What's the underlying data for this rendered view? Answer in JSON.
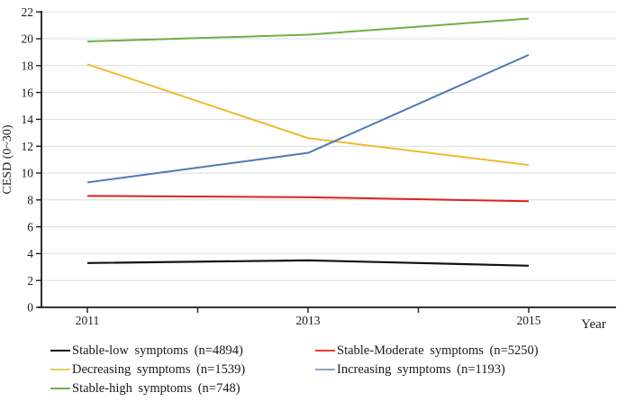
{
  "chart_data": {
    "type": "line",
    "title": "",
    "xlabel": "Year",
    "ylabel": "CESD (0~30)",
    "x": [
      2011,
      2013,
      2015
    ],
    "x_axis_ticks": [
      2011,
      2012,
      2013,
      2014,
      2015
    ],
    "x_tick_labels": [
      "2011",
      "2013",
      "2015"
    ],
    "ylim": [
      0,
      22
    ],
    "y_tick_step": 2,
    "y_tick_labels": [
      "0",
      "2",
      "4",
      "6",
      "8",
      "10",
      "12",
      "14",
      "16",
      "18",
      "20",
      "22"
    ],
    "grid": "horizontal gridlines at every 2 units",
    "gridline_color": "#dbdbdb",
    "axis_color": "#1a1a1a",
    "legend_position": "bottom-left, 2 columns",
    "series": [
      {
        "name": "Stable-low symptoms (n=4894)",
        "color": "#141414",
        "legend_color": "#141414",
        "values": [
          3.3,
          3.5,
          3.1
        ]
      },
      {
        "name": "Stable-Moderate symptoms (n=5250)",
        "color": "#e0221c",
        "legend_color": "#ee3b30",
        "values": [
          8.3,
          8.2,
          7.9
        ]
      },
      {
        "name": "Decreasing symptoms (n=1539)",
        "color": "#edbb2e",
        "legend_color": "#e3cf55",
        "values": [
          18.1,
          12.6,
          10.6
        ]
      },
      {
        "name": "Increasing symptoms (n=1193)",
        "color": "#4d7ab7",
        "legend_color": "#8ba6c0",
        "values": [
          9.3,
          11.5,
          18.8
        ]
      },
      {
        "name": "Stable-high symptoms (n=748)",
        "color": "#70ad47",
        "legend_color": "#70ad47",
        "values": [
          19.8,
          20.3,
          21.5
        ]
      }
    ]
  }
}
